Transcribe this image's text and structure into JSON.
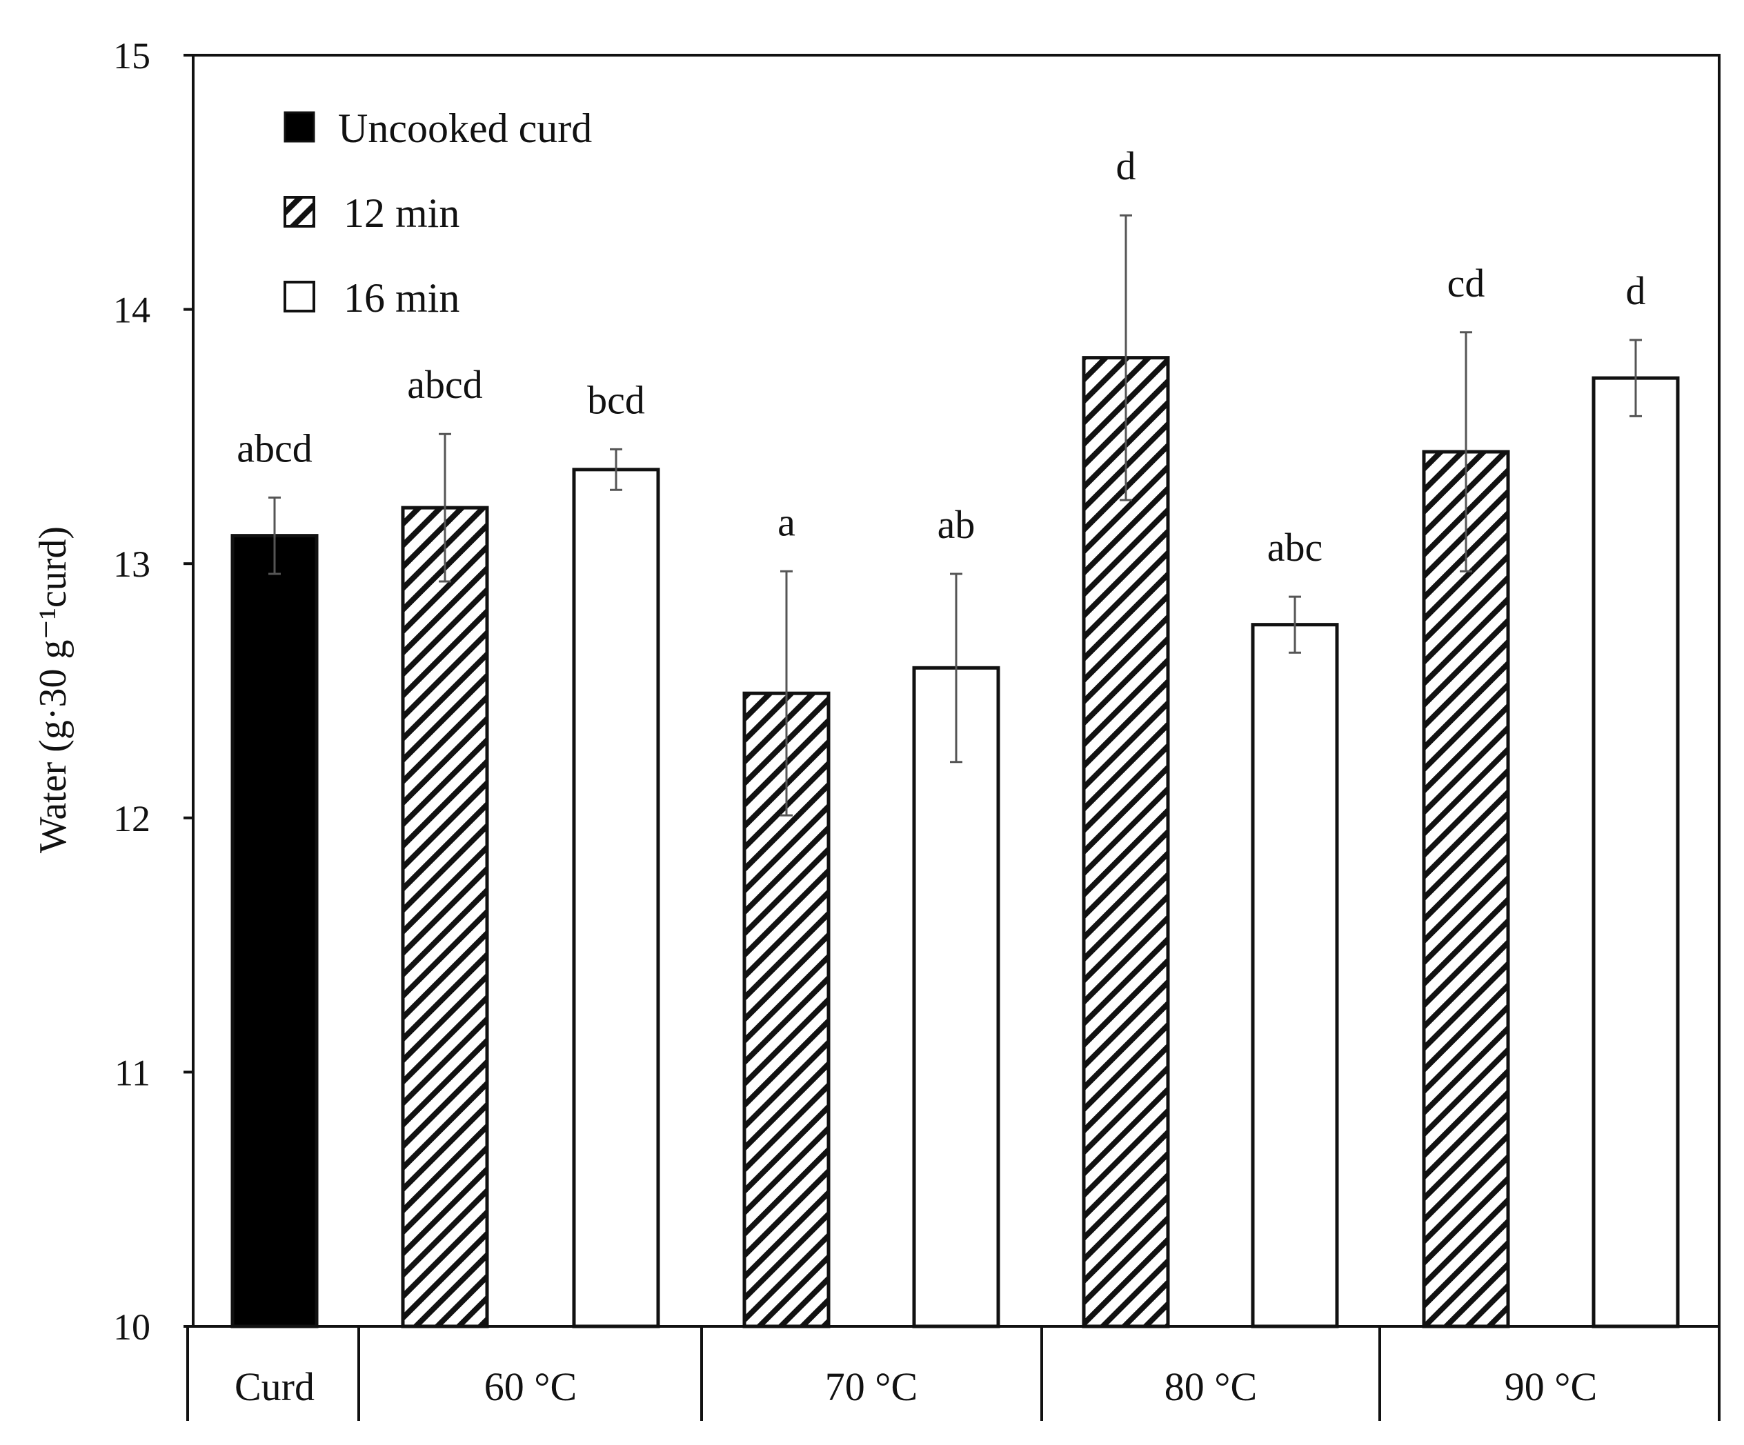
{
  "chart_data": {
    "type": "bar",
    "title": "",
    "xlabel": "",
    "ylabel": "Water (g·30 g⁻¹curd)",
    "ylim": [
      10,
      15
    ],
    "yticks": [
      10,
      11,
      12,
      13,
      14,
      15
    ],
    "grid": false,
    "legend_position": "top-left",
    "legend": [
      {
        "name": "Uncooked curd",
        "pattern": "solid"
      },
      {
        "name": "12 min",
        "pattern": "hatch"
      },
      {
        "name": "16 min",
        "pattern": "empty"
      }
    ],
    "groups": [
      "Curd",
      "60 °C",
      "70 °C",
      "80 °C",
      "90 °C"
    ],
    "bars": [
      {
        "group": "Curd",
        "series": "Uncooked curd",
        "value": 13.11,
        "error": 0.15,
        "label": "abcd"
      },
      {
        "group": "60 °C",
        "series": "12 min",
        "value": 13.22,
        "error": 0.29,
        "label": "abcd"
      },
      {
        "group": "60 °C",
        "series": "16 min",
        "value": 13.37,
        "error": 0.08,
        "label": "bcd"
      },
      {
        "group": "70 °C",
        "series": "12 min",
        "value": 12.49,
        "error": 0.48,
        "label": "a"
      },
      {
        "group": "70 °C",
        "series": "16 min",
        "value": 12.59,
        "error": 0.37,
        "label": "ab"
      },
      {
        "group": "80 °C",
        "series": "12 min",
        "value": 13.81,
        "error": 0.56,
        "label": "d"
      },
      {
        "group": "80 °C",
        "series": "16 min",
        "value": 12.76,
        "error": 0.11,
        "label": "abc"
      },
      {
        "group": "90 °C",
        "series": "12 min",
        "value": 13.44,
        "error": 0.47,
        "label": "cd"
      },
      {
        "group": "90 °C",
        "series": "16 min",
        "value": 13.73,
        "error": 0.15,
        "label": "d"
      }
    ]
  },
  "colors": {
    "axis": "#111111",
    "bar_outline": "#111111",
    "solid_fill": "#000000",
    "empty_fill": "#ffffff",
    "error_bar": "#555555"
  }
}
